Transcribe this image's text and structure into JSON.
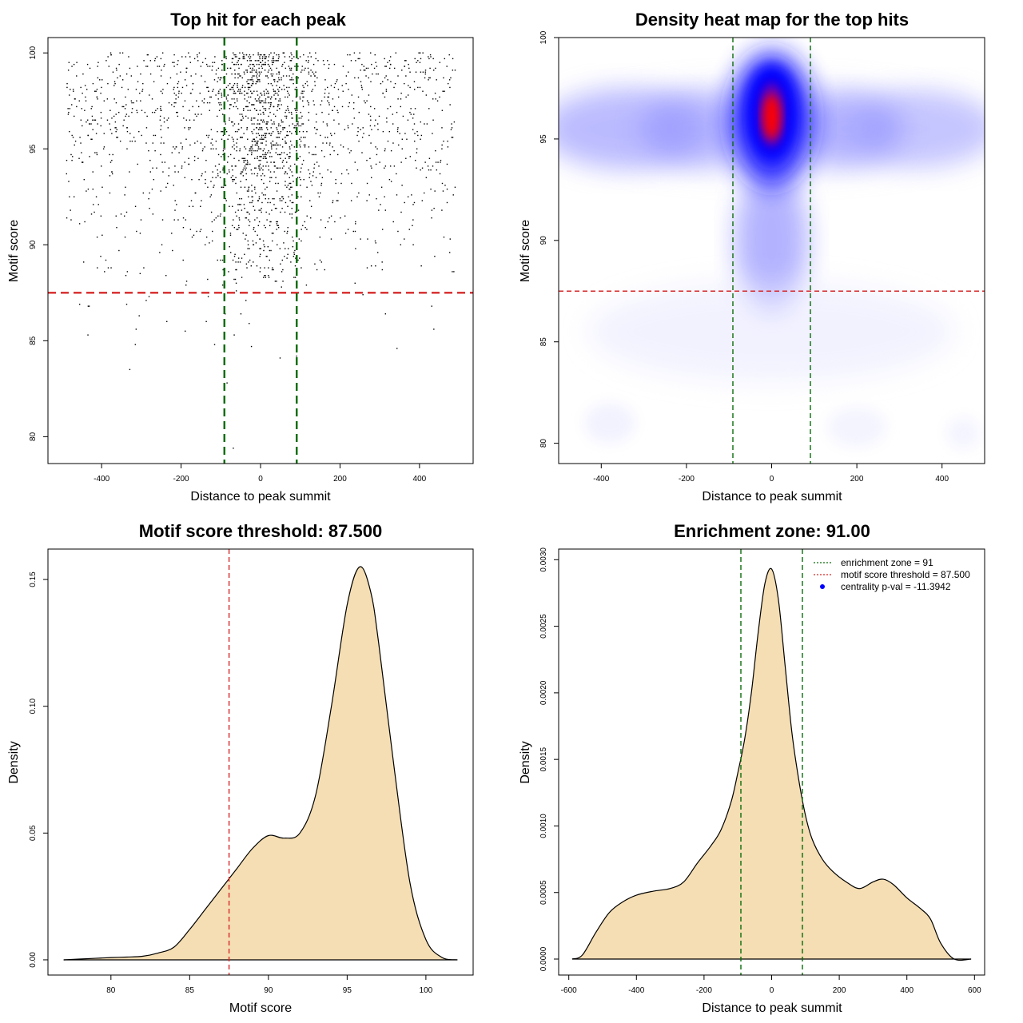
{
  "chart_data": [
    {
      "id": "p1",
      "type": "scatter",
      "title": "Top hit for each peak",
      "xlabel": "Distance to peak summit",
      "ylabel": "Motif score",
      "xlim": [
        -535,
        535
      ],
      "ylim": [
        78.6,
        100.8
      ],
      "xticks": [
        -400,
        -200,
        0,
        200,
        400
      ],
      "yticks": [
        80,
        85,
        90,
        95,
        100
      ],
      "hlines": [
        {
          "y": 87.5,
          "color": "#d62728",
          "dash": "10,6"
        }
      ],
      "vlines": [
        {
          "x": -91,
          "color": "#0a6b0a",
          "dash": "10,6"
        },
        {
          "x": 91,
          "color": "#0a6b0a",
          "dash": "10,6"
        }
      ],
      "n_points": 2200
    },
    {
      "id": "p2",
      "type": "heatmap",
      "title": "Density heat map for the top hits",
      "xlabel": "Distance to peak summit",
      "ylabel": "Motif score",
      "xlim": [
        -500,
        500
      ],
      "ylim": [
        79,
        100
      ],
      "xticks": [
        -400,
        -200,
        0,
        200,
        400
      ],
      "yticks": [
        80,
        85,
        90,
        95,
        100
      ],
      "hlines": [
        {
          "y": 87.5,
          "color": "#d62728",
          "dash": "6,4"
        }
      ],
      "vlines": [
        {
          "x": -91,
          "color": "#0a6b0a",
          "dash": "6,4"
        },
        {
          "x": 91,
          "color": "#0a6b0a",
          "dash": "6,4"
        }
      ],
      "colors": [
        "#ffffff",
        "#0000ff",
        "#ff0000"
      ]
    },
    {
      "id": "p3",
      "type": "area",
      "title": "Motif score threshold: 87.500",
      "xlabel": "Motif score",
      "ylabel": "Density",
      "xlim": [
        76,
        103
      ],
      "ylim": [
        -0.006,
        0.162
      ],
      "xticks": [
        80,
        85,
        90,
        95,
        100
      ],
      "yticks": [
        0.0,
        0.05,
        0.1,
        0.15
      ],
      "ytick_labels": [
        "0.00",
        "0.05",
        "0.10",
        "0.15"
      ],
      "x": [
        77,
        78,
        79,
        80,
        81,
        82,
        83,
        84,
        85,
        86,
        87,
        87.5,
        88,
        89,
        90,
        91,
        92,
        93,
        94,
        95,
        95.8,
        96.5,
        97,
        98,
        99,
        100,
        101,
        102
      ],
      "y": [
        0.0,
        0.0003,
        0.0006,
        0.0009,
        0.0011,
        0.0014,
        0.0027,
        0.005,
        0.012,
        0.02,
        0.028,
        0.032,
        0.036,
        0.044,
        0.049,
        0.048,
        0.05,
        0.065,
        0.1,
        0.14,
        0.155,
        0.145,
        0.125,
        0.075,
        0.03,
        0.008,
        0.001,
        0.0
      ],
      "vlines": [
        {
          "x": 87.5,
          "color": "#d62728",
          "dash": "6,4"
        }
      ],
      "fill": "#f5deb3"
    },
    {
      "id": "p4",
      "type": "area",
      "title": "Enrichment zone: 91.00",
      "xlabel": "Distance to peak summit",
      "ylabel": "Density",
      "xlim": [
        -630,
        630
      ],
      "ylim": [
        -0.00012,
        0.00308
      ],
      "xticks": [
        -600,
        -400,
        -200,
        0,
        200,
        400,
        600
      ],
      "yticks": [
        0.0,
        0.0005,
        0.001,
        0.0015,
        0.002,
        0.0025,
        0.003
      ],
      "ytick_labels": [
        "0.0000",
        "0.0005",
        "0.0010",
        "0.0015",
        "0.0020",
        "0.0025",
        "0.0030"
      ],
      "x": [
        -590,
        -560,
        -520,
        -480,
        -440,
        -400,
        -350,
        -300,
        -260,
        -220,
        -180,
        -150,
        -120,
        -100,
        -80,
        -60,
        -40,
        -20,
        0,
        20,
        40,
        60,
        80,
        100,
        120,
        150,
        180,
        220,
        260,
        300,
        330,
        360,
        400,
        440,
        470,
        500,
        540,
        590
      ],
      "y": [
        0.0,
        3e-05,
        0.0002,
        0.00035,
        0.00043,
        0.00048,
        0.00051,
        0.00053,
        0.00058,
        0.00072,
        0.00085,
        0.00097,
        0.00118,
        0.0014,
        0.00165,
        0.002,
        0.00245,
        0.00282,
        0.00293,
        0.0027,
        0.0022,
        0.0017,
        0.00135,
        0.00108,
        0.0009,
        0.00075,
        0.00066,
        0.00058,
        0.00053,
        0.00058,
        0.0006,
        0.00056,
        0.00046,
        0.00038,
        0.0003,
        0.00012,
        0.0,
        0.0
      ],
      "vlines": [
        {
          "x": -91,
          "color": "#0a6b0a",
          "dash": "6,4"
        },
        {
          "x": 91,
          "color": "#0a6b0a",
          "dash": "6,4"
        }
      ],
      "fill": "#f5deb3",
      "legend": {
        "placement": "top-right",
        "entries": [
          {
            "label": "enrichment zone = 91",
            "kind": "line",
            "color": "#0a6b0a"
          },
          {
            "label": "motif score threshold = 87.500",
            "kind": "line",
            "color": "#d62728"
          },
          {
            "label": "centrality p-val = -11.3942",
            "kind": "point",
            "color": "#0000ff"
          }
        ]
      }
    }
  ]
}
